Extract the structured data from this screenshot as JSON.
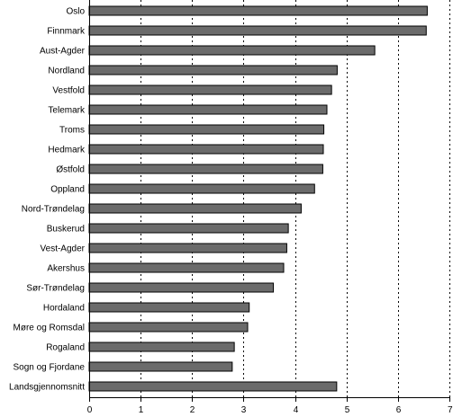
{
  "chart_data": {
    "type": "bar",
    "orientation": "horizontal",
    "categories": [
      "Oslo",
      "Finnmark",
      "Aust-Agder",
      "Nordland",
      "Vestfold",
      "Telemark",
      "Troms",
      "Hedmark",
      "Østfold",
      "Oppland",
      "Nord-Trøndelag",
      "Buskerud",
      "Vest-Agder",
      "Akershus",
      "Sør-Trøndelag",
      "Hordaland",
      "Møre og Romsdal",
      "Rogaland",
      "Sogn og Fjordane",
      "Landsgjennomsnitt"
    ],
    "values": [
      6.57,
      6.55,
      5.55,
      4.82,
      4.71,
      4.62,
      4.56,
      4.55,
      4.54,
      4.38,
      4.12,
      3.87,
      3.84,
      3.78,
      3.58,
      3.11,
      3.08,
      2.82,
      2.78,
      4.81
    ],
    "xlim": [
      0,
      7
    ],
    "xticks": [
      0,
      1,
      2,
      3,
      4,
      5,
      6,
      7
    ],
    "grid": "vertical dotted at each tick",
    "title": "",
    "xlabel": "",
    "ylabel": "",
    "bar_color": "#6b6b6b",
    "bar_outline_color": "#000000"
  }
}
